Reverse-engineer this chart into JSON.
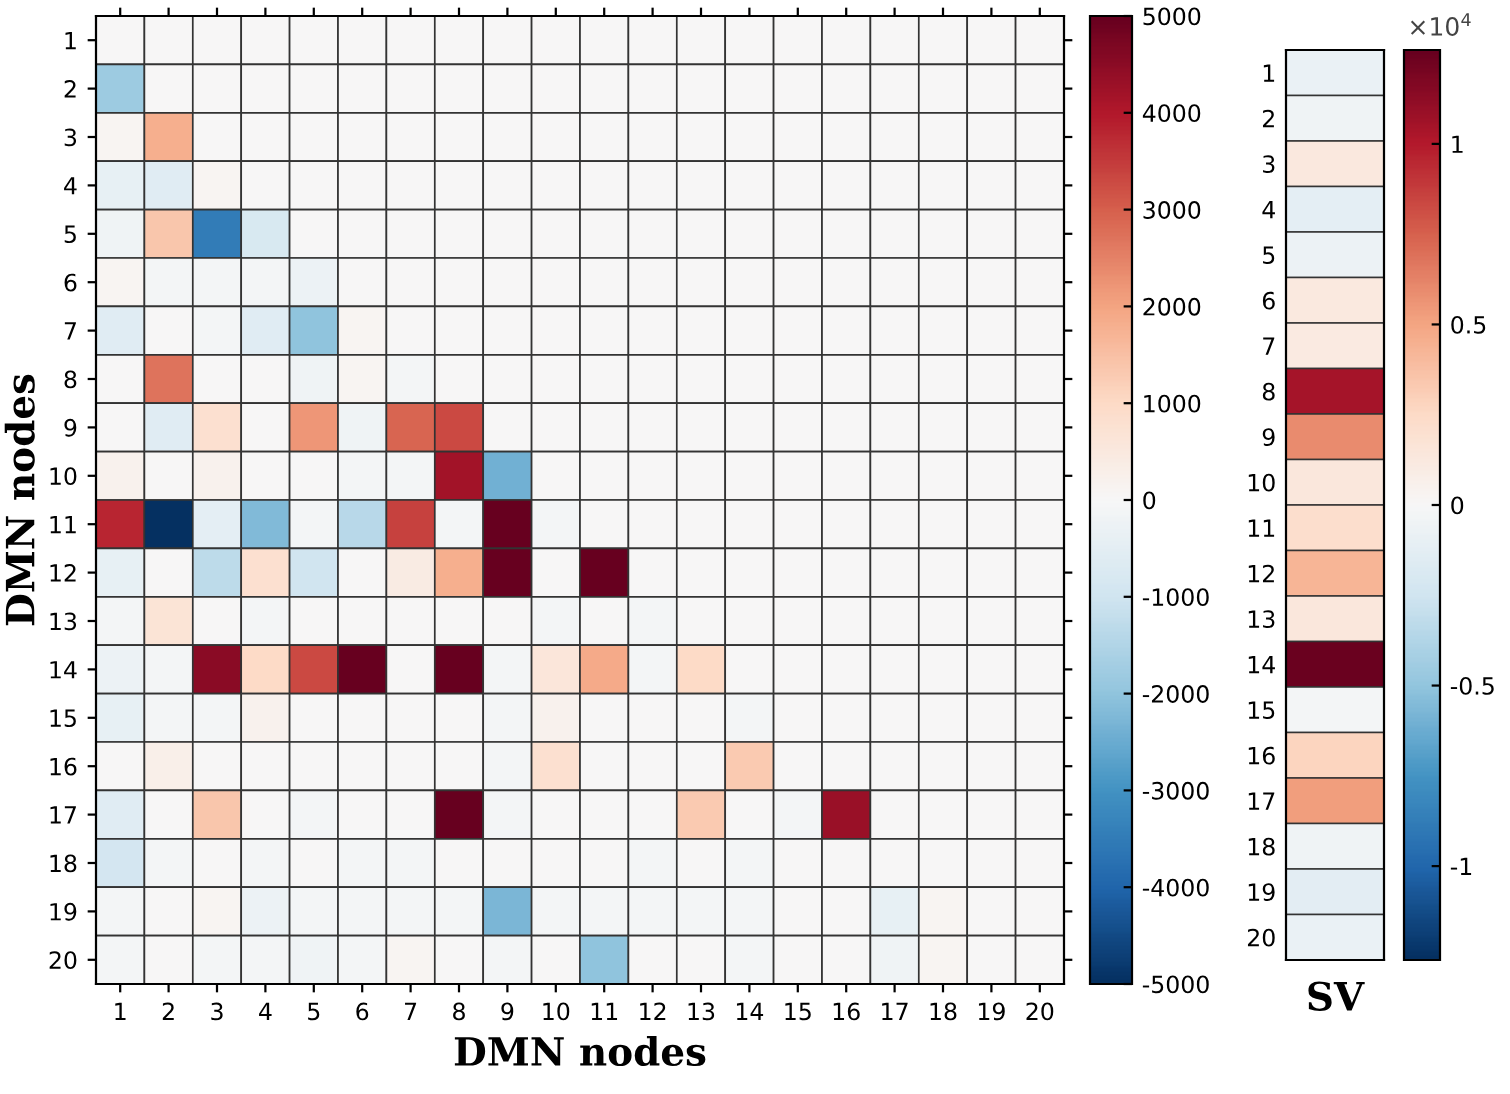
{
  "chart_data": [
    {
      "type": "heatmap",
      "xlabel": "DMN nodes",
      "ylabel": "DMN nodes",
      "categories": [
        "1",
        "2",
        "3",
        "4",
        "5",
        "6",
        "7",
        "8",
        "9",
        "10",
        "11",
        "12",
        "13",
        "14",
        "15",
        "16",
        "17",
        "18",
        "19",
        "20"
      ],
      "y_categories": [
        "1",
        "2",
        "3",
        "4",
        "5",
        "6",
        "7",
        "8",
        "9",
        "10",
        "11",
        "12",
        "13",
        "14",
        "15",
        "16",
        "17",
        "18",
        "19",
        "20"
      ],
      "cells": [
        [
          0,
          0,
          0,
          0,
          0,
          0,
          0,
          0,
          0,
          0,
          0,
          0,
          0,
          0,
          0,
          0,
          0,
          0,
          0,
          0
        ],
        [
          -1800,
          0,
          0,
          0,
          0,
          0,
          0,
          0,
          0,
          0,
          0,
          0,
          0,
          0,
          0,
          0,
          0,
          0,
          0,
          0
        ],
        [
          100,
          1800,
          0,
          0,
          0,
          0,
          0,
          0,
          0,
          0,
          0,
          0,
          0,
          0,
          0,
          0,
          0,
          0,
          0,
          0
        ],
        [
          -400,
          -600,
          100,
          0,
          0,
          0,
          0,
          0,
          0,
          0,
          0,
          0,
          0,
          0,
          0,
          0,
          0,
          0,
          0,
          0
        ],
        [
          -200,
          1400,
          -3500,
          -800,
          0,
          0,
          0,
          0,
          0,
          0,
          0,
          0,
          0,
          0,
          0,
          0,
          0,
          0,
          0,
          0
        ],
        [
          100,
          -100,
          -100,
          -100,
          -300,
          0,
          0,
          0,
          0,
          0,
          0,
          0,
          0,
          0,
          0,
          0,
          0,
          0,
          0,
          0
        ],
        [
          -600,
          0,
          -100,
          -600,
          -2000,
          100,
          0,
          0,
          0,
          0,
          0,
          0,
          0,
          0,
          0,
          0,
          0,
          0,
          0,
          0
        ],
        [
          0,
          2700,
          0,
          0,
          -200,
          100,
          -100,
          0,
          0,
          0,
          0,
          0,
          0,
          0,
          0,
          0,
          0,
          0,
          0,
          0
        ],
        [
          0,
          -600,
          800,
          0,
          2200,
          -200,
          2900,
          3300,
          0,
          0,
          0,
          0,
          0,
          0,
          0,
          0,
          0,
          0,
          0,
          0
        ],
        [
          200,
          0,
          200,
          0,
          0,
          -100,
          -100,
          4200,
          -2400,
          0,
          0,
          0,
          0,
          0,
          0,
          0,
          0,
          0,
          0,
          0
        ],
        [
          3800,
          -5000,
          -500,
          -2200,
          -100,
          -1400,
          3400,
          -100,
          5000,
          -100,
          0,
          0,
          0,
          0,
          0,
          0,
          0,
          0,
          0,
          0
        ],
        [
          -400,
          0,
          -1300,
          800,
          -1000,
          0,
          400,
          1800,
          5000,
          0,
          5000,
          0,
          0,
          0,
          0,
          0,
          0,
          0,
          0,
          0
        ],
        [
          -100,
          700,
          0,
          -100,
          0,
          0,
          0,
          0,
          0,
          -100,
          0,
          -100,
          0,
          0,
          0,
          0,
          0,
          0,
          0,
          0
        ],
        [
          -300,
          -100,
          4500,
          1000,
          3300,
          5000,
          0,
          5000,
          -100,
          600,
          1900,
          -100,
          1000,
          0,
          0,
          0,
          0,
          0,
          0,
          0
        ],
        [
          -400,
          -100,
          -100,
          200,
          0,
          0,
          0,
          0,
          -100,
          200,
          0,
          0,
          0,
          -100,
          0,
          0,
          0,
          0,
          0,
          0
        ],
        [
          0,
          300,
          0,
          0,
          0,
          0,
          0,
          0,
          -100,
          800,
          0,
          0,
          0,
          1300,
          0,
          0,
          0,
          0,
          0,
          0
        ],
        [
          -600,
          0,
          1400,
          0,
          -100,
          0,
          0,
          5000,
          -100,
          0,
          0,
          0,
          1300,
          0,
          -100,
          4300,
          0,
          0,
          0,
          0
        ],
        [
          -900,
          -100,
          0,
          -100,
          0,
          -100,
          -100,
          0,
          0,
          0,
          0,
          -100,
          0,
          -100,
          0,
          0,
          0,
          0,
          0,
          0
        ],
        [
          -100,
          0,
          100,
          -300,
          -100,
          -100,
          -100,
          -100,
          -2300,
          -100,
          -100,
          -100,
          -100,
          -100,
          0,
          0,
          -400,
          100,
          0,
          0
        ],
        [
          -100,
          0,
          -100,
          -100,
          -200,
          -100,
          100,
          0,
          -100,
          0,
          -2000,
          0,
          0,
          -100,
          0,
          0,
          -200,
          100,
          0,
          0
        ]
      ],
      "clim": [
        -5000,
        5000
      ],
      "cticks": [
        -5000,
        -4000,
        -3000,
        -2000,
        -1000,
        0,
        1000,
        2000,
        3000,
        4000,
        5000
      ]
    },
    {
      "type": "heatmap",
      "xlabel": "SV",
      "categories": [
        null
      ],
      "y_categories": [
        "1",
        "2",
        "3",
        "4",
        "5",
        "6",
        "7",
        "8",
        "9",
        "10",
        "11",
        "12",
        "13",
        "14",
        "15",
        "16",
        "17",
        "18",
        "19",
        "20"
      ],
      "cells": [
        [
          -0.08
        ],
        [
          -0.05
        ],
        [
          0.13
        ],
        [
          -0.12
        ],
        [
          -0.07
        ],
        [
          0.12
        ],
        [
          0.11
        ],
        [
          1.05
        ],
        [
          0.6
        ],
        [
          0.14
        ],
        [
          0.22
        ],
        [
          0.43
        ],
        [
          0.14
        ],
        [
          1.25
        ],
        [
          -0.02
        ],
        [
          0.28
        ],
        [
          0.53
        ],
        [
          -0.05
        ],
        [
          -0.13
        ],
        [
          -0.08
        ]
      ],
      "clim": [
        -1.26,
        1.26
      ],
      "cticks": [
        -1,
        -0.5,
        0,
        0.5,
        1
      ],
      "annotations": [
        "×10$^{4}$"
      ]
    }
  ]
}
